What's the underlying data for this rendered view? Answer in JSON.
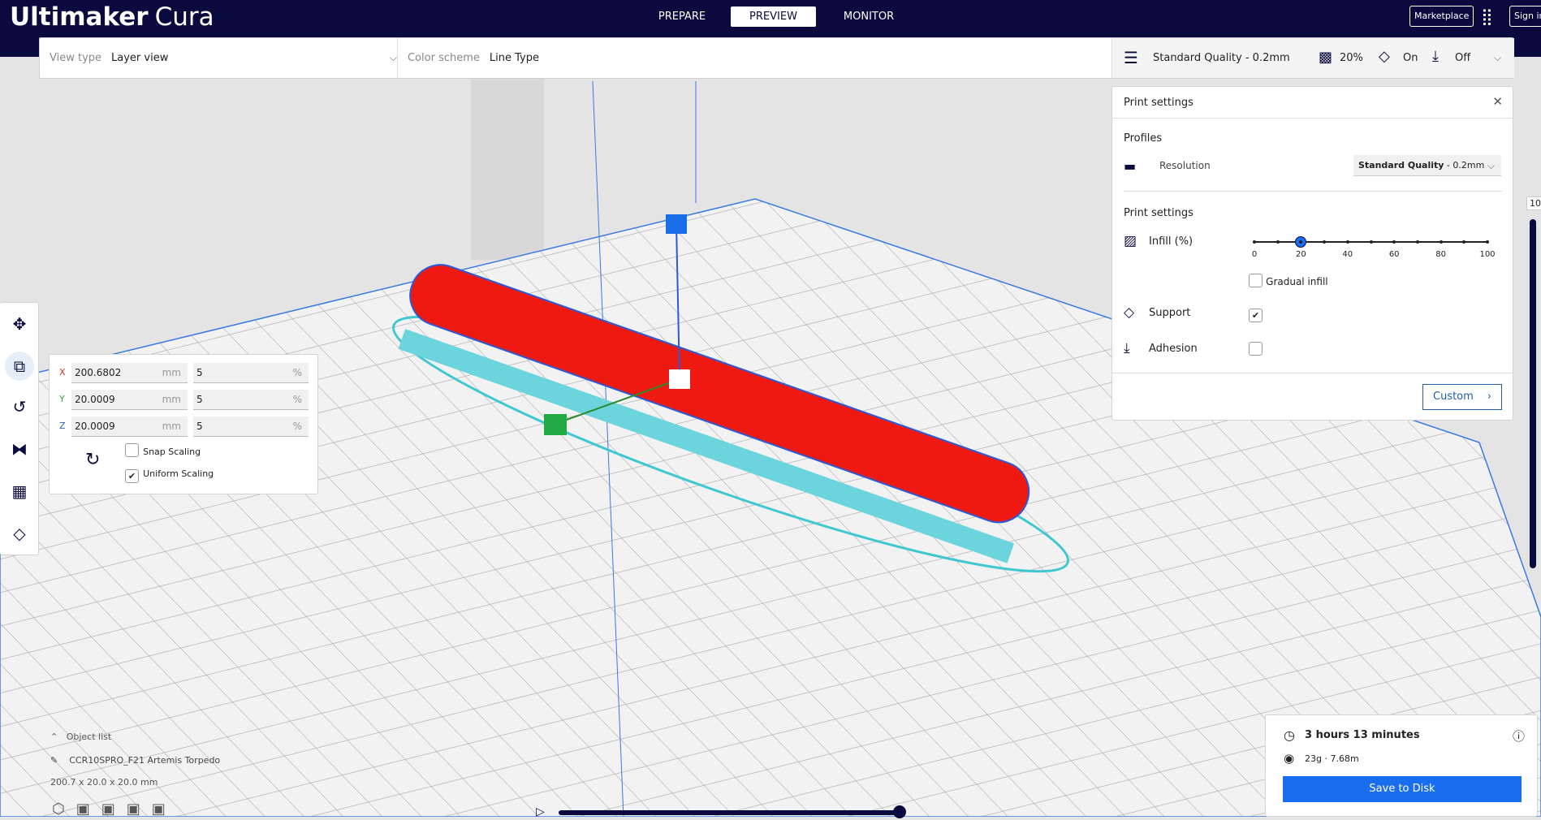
{
  "app": {
    "logo_bold": "Ultimaker",
    "logo_light": "Cura"
  },
  "header": {
    "tabs": [
      {
        "label": "PREPARE"
      },
      {
        "label": "PREVIEW",
        "active": true
      },
      {
        "label": "MONITOR"
      }
    ],
    "marketplace": "Marketplace",
    "signin": "Sign in"
  },
  "toolbar": {
    "view_type_label": "View type",
    "view_type_value": "Layer view",
    "color_scheme_label": "Color scheme",
    "color_scheme_value": "Line Type",
    "profile": "Standard Quality - 0.2mm",
    "infill": "20%",
    "support": "On",
    "adhesion": "Off"
  },
  "print_settings": {
    "title": "Print settings",
    "profiles_heading": "Profiles",
    "resolution_label": "Resolution",
    "resolution_bold": "Standard Quality",
    "resolution_rest": " - 0.2mm",
    "settings_heading": "Print settings",
    "infill_label": "Infill (%)",
    "infill_value": 20,
    "infill_ticks": [
      "0",
      "20",
      "40",
      "60",
      "80",
      "100"
    ],
    "gradual_label": "Gradual infill",
    "gradual_checked": false,
    "support_label": "Support",
    "support_checked": true,
    "adhesion_label": "Adhesion",
    "adhesion_checked": false,
    "custom_button": "Custom"
  },
  "scale_tool": {
    "rows": [
      {
        "axis": "X",
        "mm": "200.6802",
        "pct": "5"
      },
      {
        "axis": "Y",
        "mm": "20.0009",
        "pct": "5"
      },
      {
        "axis": "Z",
        "mm": "20.0009",
        "pct": "5"
      }
    ],
    "mm_unit": "mm",
    "pct_unit": "%",
    "snap_label": "Snap Scaling",
    "snap_checked": false,
    "uniform_label": "Uniform Scaling",
    "uniform_checked": true
  },
  "object_list": {
    "title": "Object list",
    "object_name": "CCR10SPRO_F21 Artemis Torpedo",
    "dimensions": "200.7 x 20.0 x 20.0 mm"
  },
  "print_summary": {
    "time": "3 hours 13 minutes",
    "material": "23g · 7.68m",
    "save_button": "Save to Disk"
  },
  "layer_slider": {
    "top_label": "10"
  },
  "colors": {
    "header": "#0b0a3e",
    "accent": "#196ef0",
    "model": "#f01a10",
    "support": "#5fd0d8"
  }
}
